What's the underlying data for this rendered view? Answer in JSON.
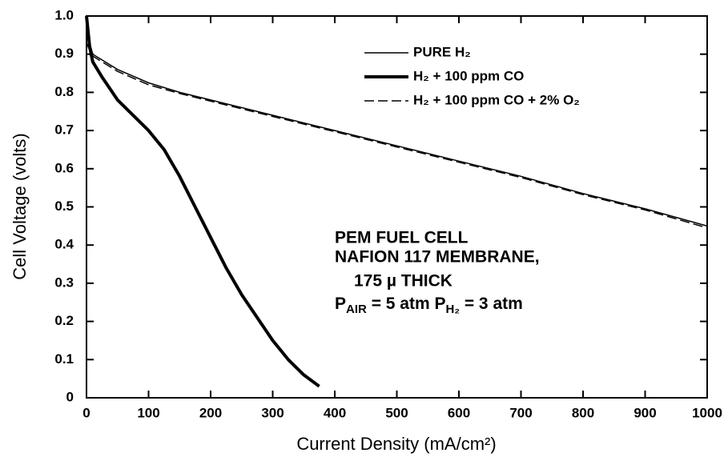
{
  "chart_data": {
    "type": "line",
    "xlabel": "Current Density (mA/cm²)",
    "ylabel": "Cell Voltage (volts)",
    "xlim": [
      0,
      1000
    ],
    "ylim": [
      0,
      1
    ],
    "xticks": [
      0,
      100,
      200,
      300,
      400,
      500,
      600,
      700,
      800,
      900,
      1000
    ],
    "yticks": [
      0,
      0.1,
      0.2,
      0.3,
      0.4,
      0.5,
      0.6,
      0.7,
      0.8,
      0.9,
      {
        "value": 1,
        "label": "1.0"
      }
    ],
    "legend": "top",
    "series": [
      {
        "name": "PURE H₂",
        "color": "#000000",
        "width": 1.5,
        "style": "solid",
        "x": [
          0,
          5,
          10,
          25,
          50,
          100,
          150,
          200,
          300,
          400,
          500,
          600,
          700,
          800,
          900,
          1000
        ],
        "values": [
          0.99,
          0.93,
          0.9,
          0.885,
          0.86,
          0.825,
          0.8,
          0.78,
          0.74,
          0.7,
          0.66,
          0.62,
          0.58,
          0.535,
          0.495,
          0.45
        ]
      },
      {
        "name": "H₂ + 100 ppm CO",
        "color": "#000000",
        "width": 4,
        "style": "solid",
        "x": [
          0,
          5,
          10,
          25,
          50,
          100,
          125,
          150,
          175,
          200,
          225,
          250,
          275,
          300,
          325,
          350,
          375
        ],
        "values": [
          1.0,
          0.92,
          0.88,
          0.84,
          0.78,
          0.7,
          0.65,
          0.58,
          0.5,
          0.42,
          0.34,
          0.27,
          0.21,
          0.15,
          0.1,
          0.06,
          0.03
        ]
      },
      {
        "name": "H₂ + 100 ppm CO + 2% O₂",
        "color": "#000000",
        "width": 1.5,
        "style": "dashed",
        "x": [
          0,
          5,
          10,
          25,
          50,
          100,
          150,
          200,
          300,
          400,
          500,
          600,
          700,
          800,
          900,
          1000
        ],
        "values": [
          0.93,
          0.91,
          0.895,
          0.88,
          0.855,
          0.82,
          0.797,
          0.777,
          0.737,
          0.697,
          0.657,
          0.617,
          0.577,
          0.532,
          0.492,
          0.445
        ]
      }
    ],
    "annotation": [
      "PEM FUEL CELL",
      "NAFION 117 MEMBRANE,",
      "175 µ THICK"
    ],
    "pressure": [
      "P",
      "AIR",
      " = 5 atm  P",
      "H₂",
      " = 3 atm"
    ]
  }
}
